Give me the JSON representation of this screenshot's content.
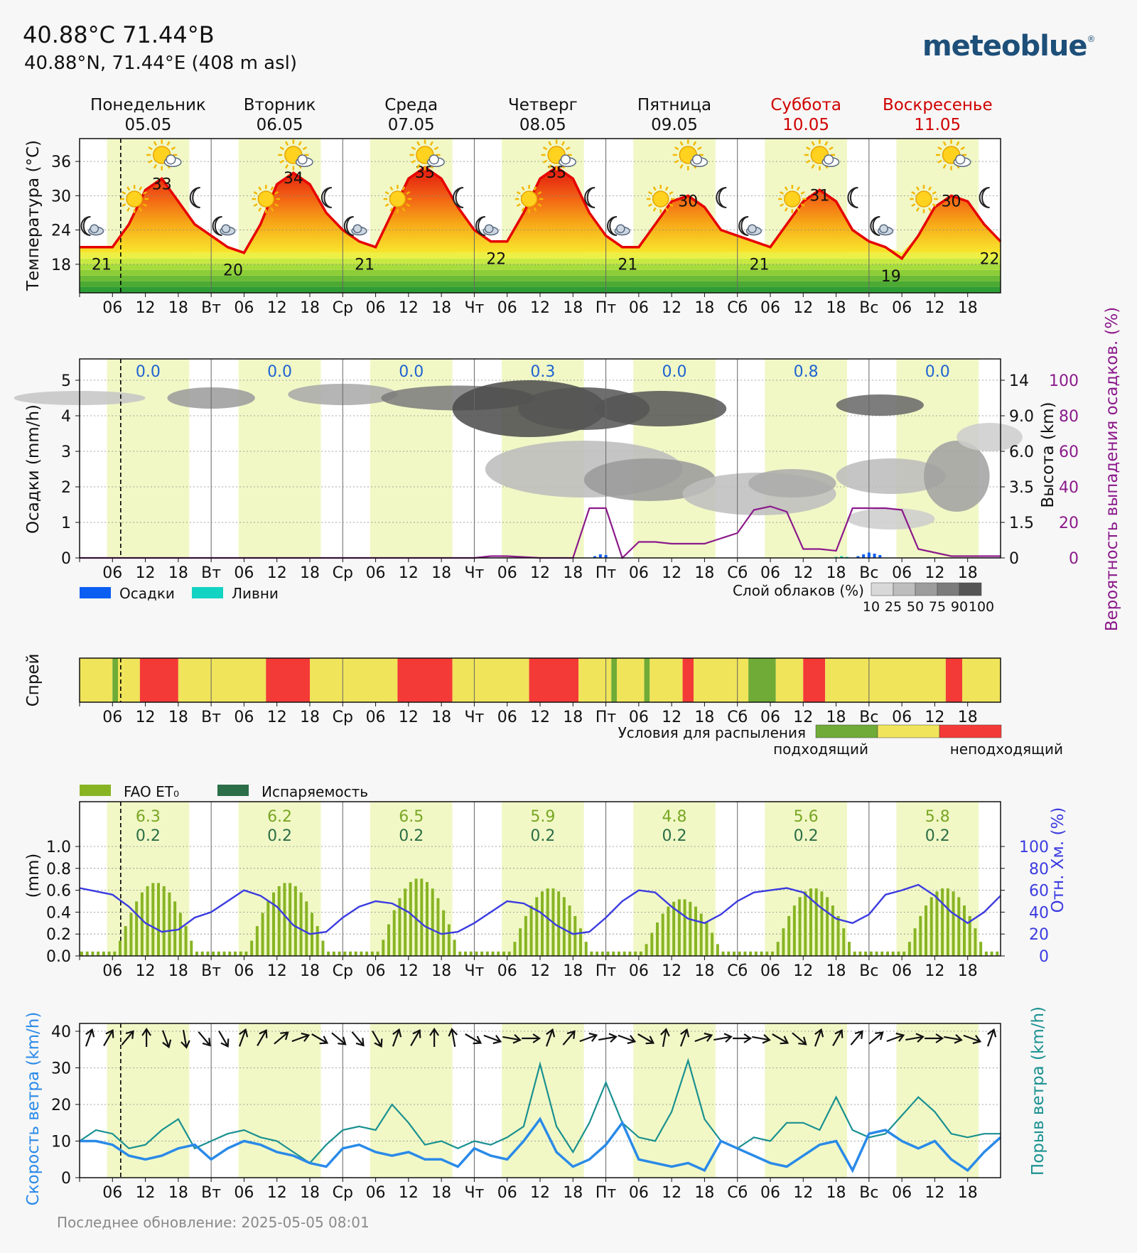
{
  "header": {
    "title": "40.88°C 71.44°В",
    "subtitle": "40.88°N, 71.44°E (408 m asl)",
    "logo": "meteoblue"
  },
  "footer": "Последнее обновление: 2025-05-05 08:01",
  "colors": {
    "day_band": "#f1f8c6",
    "temperature_line": "#e60000",
    "precip": "#0b5ef2",
    "showers": "#13d3c2",
    "precip_probability": "#8b1a8b",
    "et0": "#88b424",
    "evaporation": "#2c6e47",
    "humidity": "#3b3be0",
    "wind_speed": "#2a8ae8",
    "wind_gust": "#1a9090",
    "spray_ok": "#6fab36",
    "spray_mid": "#f0e45a",
    "spray_bad": "#f43a37",
    "weekend_day": "#d00000"
  },
  "days": [
    {
      "name": "Понедельник",
      "date": "05.05",
      "weekend": false
    },
    {
      "name": "Вторник",
      "date": "06.05",
      "weekend": false
    },
    {
      "name": "Среда",
      "date": "07.05",
      "weekend": false
    },
    {
      "name": "Четверг",
      "date": "08.05",
      "weekend": false
    },
    {
      "name": "Пятница",
      "date": "09.05",
      "weekend": false
    },
    {
      "name": "Суббота",
      "date": "10.05",
      "weekend": true
    },
    {
      "name": "Воскресенье",
      "date": "11.05",
      "weekend": true
    }
  ],
  "x_axis_day_abbrev": [
    "",
    "Вт",
    "Ср",
    "Чт",
    "Пт",
    "Сб",
    "Вс"
  ],
  "x_axis_hours": [
    "06",
    "12",
    "18"
  ],
  "chart_data": [
    {
      "type": "line",
      "title": "",
      "ylabel": "Температура (°C)",
      "yticks": [
        18,
        24,
        30,
        36
      ],
      "ylim": [
        13,
        40
      ],
      "x_hours": [
        0,
        3,
        6,
        9,
        12,
        15,
        18,
        21,
        24,
        27,
        30,
        33,
        36,
        39,
        42,
        45,
        48,
        51,
        54,
        57,
        60,
        63,
        66,
        69,
        72,
        75,
        78,
        81,
        84,
        87,
        90,
        93,
        96,
        99,
        102,
        105,
        108,
        111,
        114,
        117,
        120,
        123,
        126,
        129,
        132,
        135,
        138,
        141,
        144,
        147,
        150,
        153,
        156,
        159,
        162,
        165,
        168
      ],
      "series": [
        {
          "values": [
            21,
            21,
            21,
            25,
            31,
            33,
            29,
            25,
            23,
            21,
            20,
            25,
            32,
            34,
            32,
            27,
            24,
            22,
            21,
            27,
            33,
            35,
            33,
            28,
            24,
            22,
            22,
            27,
            33,
            35,
            33,
            27,
            23,
            21,
            21,
            25,
            29,
            30,
            28,
            24,
            23,
            22,
            21,
            25,
            29,
            31,
            29,
            24,
            22,
            21,
            19,
            23,
            28,
            30,
            29,
            25,
            22
          ]
        }
      ],
      "max_labels": [
        33,
        34,
        35,
        35,
        30,
        31,
        30
      ],
      "min_labels": [
        21,
        20,
        21,
        22,
        21,
        21,
        19,
        22
      ]
    },
    {
      "type": "bar",
      "title": "",
      "ylabel": "Осадки (mm/h)",
      "ylabel_right_1": "Высота (km)",
      "ylabel_right_2": "Вероятность выпадения осадков. (%)",
      "yticks": [
        0,
        1,
        2,
        3,
        4,
        5
      ],
      "ylim": [
        0,
        5.6
      ],
      "right_ticks_height": [
        "0",
        "1.5",
        "3.5",
        "6.0",
        "9.0",
        "14"
      ],
      "right_ticks_probability": [
        "0",
        "20",
        "40",
        "60",
        "80",
        "100"
      ],
      "daily_totals": [
        "0.0",
        "0.0",
        "0.0",
        "0.3",
        "0.0",
        "0.8",
        "0.0"
      ],
      "legend": [
        {
          "name": "Осадки"
        },
        {
          "name": "Ливни"
        }
      ],
      "cloud_legend_title": "Слой облаков (%)",
      "cloud_legend_ticks": [
        "10",
        "25",
        "50",
        "75",
        "90",
        "100"
      ],
      "precip_probability": {
        "x_hours": [
          0,
          6,
          12,
          18,
          24,
          30,
          36,
          42,
          48,
          54,
          60,
          66,
          72,
          75,
          78,
          84,
          90,
          93,
          96,
          99,
          102,
          105,
          108,
          111,
          114,
          117,
          120,
          123,
          126,
          129,
          132,
          135,
          138,
          141,
          144,
          147,
          150,
          153,
          156,
          159,
          160,
          162,
          165,
          168
        ],
        "values": [
          0,
          0,
          0,
          0,
          0,
          0,
          0,
          0,
          0,
          0,
          0,
          0,
          0,
          1,
          1,
          0,
          0,
          28,
          28,
          0,
          9,
          9,
          8,
          8,
          8,
          11,
          14,
          27,
          29,
          26,
          5,
          5,
          4,
          28,
          28,
          28,
          27,
          5,
          3,
          1,
          1,
          1,
          1,
          1
        ]
      },
      "precip_bars": {
        "x_hours": [
          94,
          95,
          96,
          142,
          143,
          144,
          145,
          146
        ],
        "values": [
          0.05,
          0.1,
          0.08,
          0.05,
          0.1,
          0.15,
          0.12,
          0.08
        ]
      },
      "shower_bars": {
        "x_hours": [
          138,
          139,
          140
        ],
        "values": [
          0.03,
          0.05,
          0.03
        ]
      }
    },
    {
      "type": "heatmap",
      "ylabel": "Спрей",
      "legend_title": "Условия для распыления",
      "legend_left": "подходящий",
      "legend_right": "неподходящий",
      "segments": [
        {
          "from": 0,
          "to": 6,
          "state": "mid"
        },
        {
          "from": 6,
          "to": 7,
          "state": "ok"
        },
        {
          "from": 7,
          "to": 8,
          "state": "mid"
        },
        {
          "from": 8,
          "to": 11,
          "state": "mid"
        },
        {
          "from": 11,
          "to": 18,
          "state": "bad"
        },
        {
          "from": 18,
          "to": 34,
          "state": "mid"
        },
        {
          "from": 34,
          "to": 42,
          "state": "bad"
        },
        {
          "from": 42,
          "to": 58,
          "state": "mid"
        },
        {
          "from": 58,
          "to": 68,
          "state": "bad"
        },
        {
          "from": 68,
          "to": 82,
          "state": "mid"
        },
        {
          "from": 82,
          "to": 91,
          "state": "bad"
        },
        {
          "from": 91,
          "to": 97,
          "state": "mid"
        },
        {
          "from": 97,
          "to": 98,
          "state": "ok"
        },
        {
          "from": 98,
          "to": 103,
          "state": "mid"
        },
        {
          "from": 103,
          "to": 104,
          "state": "ok"
        },
        {
          "from": 104,
          "to": 110,
          "state": "mid"
        },
        {
          "from": 110,
          "to": 112,
          "state": "bad"
        },
        {
          "from": 112,
          "to": 122,
          "state": "mid"
        },
        {
          "from": 122,
          "to": 127,
          "state": "ok"
        },
        {
          "from": 127,
          "to": 132,
          "state": "mid"
        },
        {
          "from": 132,
          "to": 136,
          "state": "bad"
        },
        {
          "from": 136,
          "to": 158,
          "state": "mid"
        },
        {
          "from": 158,
          "to": 161,
          "state": "bad"
        },
        {
          "from": 161,
          "to": 168,
          "state": "mid"
        }
      ]
    },
    {
      "type": "bar",
      "ylabel": "(mm)",
      "ylabel_right": "Отн. Хм. (%)",
      "yticks": [
        "0.0",
        "0.2",
        "0.4",
        "0.6",
        "0.8",
        "1.0"
      ],
      "ylim": [
        0,
        1.0
      ],
      "right_ticks": [
        "0",
        "20",
        "40",
        "60",
        "80",
        "100"
      ],
      "legend": [
        {
          "name": "FAO ET₀"
        },
        {
          "name": "Испаряемость"
        }
      ],
      "daily_et0": [
        "6.3",
        "6.2",
        "6.5",
        "5.9",
        "4.8",
        "5.6",
        "5.8"
      ],
      "daily_evaporation": [
        "0.2",
        "0.2",
        "0.2",
        "0.2",
        "0.2",
        "0.2",
        "0.2"
      ],
      "et0_peaks": [
        0.67,
        0.67,
        0.71,
        0.62,
        0.52,
        0.62,
        0.62
      ],
      "humidity": {
        "x_hours": [
          0,
          6,
          9,
          12,
          15,
          18,
          21,
          24,
          27,
          30,
          33,
          36,
          39,
          42,
          45,
          48,
          51,
          54,
          57,
          60,
          63,
          66,
          69,
          72,
          75,
          78,
          81,
          84,
          87,
          90,
          93,
          96,
          99,
          102,
          105,
          108,
          111,
          114,
          117,
          120,
          123,
          126,
          129,
          132,
          135,
          138,
          141,
          144,
          147,
          150,
          153,
          156,
          159,
          162,
          165,
          168
        ],
        "values": [
          62,
          56,
          45,
          30,
          22,
          24,
          35,
          40,
          50,
          60,
          55,
          45,
          28,
          20,
          22,
          35,
          45,
          50,
          48,
          40,
          27,
          20,
          22,
          30,
          40,
          50,
          48,
          40,
          28,
          20,
          22,
          35,
          50,
          60,
          58,
          45,
          34,
          30,
          38,
          50,
          58,
          60,
          62,
          58,
          45,
          34,
          30,
          38,
          56,
          60,
          65,
          55,
          40,
          30,
          40,
          55
        ]
      }
    },
    {
      "type": "line",
      "ylabel": "Скорость ветра (km/h)",
      "ylabel_right": "Порыв ветра (km/h)",
      "yticks": [
        0,
        10,
        20,
        30,
        40
      ],
      "ylim": [
        0,
        40
      ],
      "x_hours": [
        0,
        3,
        6,
        9,
        12,
        15,
        18,
        21,
        24,
        27,
        30,
        33,
        36,
        39,
        42,
        45,
        48,
        51,
        54,
        57,
        60,
        63,
        66,
        69,
        72,
        75,
        78,
        81,
        84,
        87,
        90,
        93,
        96,
        99,
        102,
        105,
        108,
        111,
        114,
        117,
        120,
        123,
        126,
        129,
        132,
        135,
        138,
        141,
        144,
        147,
        150,
        153,
        156,
        159,
        162,
        165,
        168
      ],
      "series": [
        {
          "name": "wind_speed",
          "values": [
            10,
            10,
            9,
            6,
            5,
            6,
            8,
            9,
            5,
            8,
            10,
            9,
            7,
            6,
            4,
            3,
            8,
            9,
            7,
            6,
            7,
            5,
            5,
            3,
            8,
            6,
            5,
            10,
            16,
            7,
            3,
            5,
            9,
            15,
            5,
            4,
            3,
            4,
            2,
            10,
            8,
            6,
            4,
            3,
            6,
            9,
            10,
            2,
            12,
            13,
            10,
            8,
            10,
            5,
            2,
            7,
            11
          ]
        },
        {
          "name": "wind_gust",
          "values": [
            10,
            13,
            12,
            8,
            9,
            13,
            16,
            8,
            10,
            12,
            13,
            11,
            10,
            7,
            4,
            9,
            13,
            14,
            13,
            20,
            15,
            9,
            10,
            8,
            10,
            9,
            11,
            14,
            31,
            14,
            7,
            15,
            26,
            15,
            11,
            10,
            18,
            32,
            16,
            10,
            8,
            11,
            10,
            15,
            15,
            13,
            22,
            13,
            11,
            12,
            17,
            22,
            18,
            12,
            11,
            12,
            12
          ]
        }
      ],
      "arrow_rotations": [
        200,
        210,
        220,
        180,
        340,
        350,
        320,
        330,
        200,
        210,
        230,
        250,
        300,
        310,
        320,
        330,
        200,
        210,
        180,
        170,
        300,
        290,
        280,
        270,
        200,
        220,
        250,
        260,
        290,
        300,
        190,
        200,
        250,
        260,
        270,
        280,
        300,
        310,
        200,
        210,
        220,
        230,
        250,
        260,
        270,
        280,
        290,
        200
      ]
    }
  ]
}
